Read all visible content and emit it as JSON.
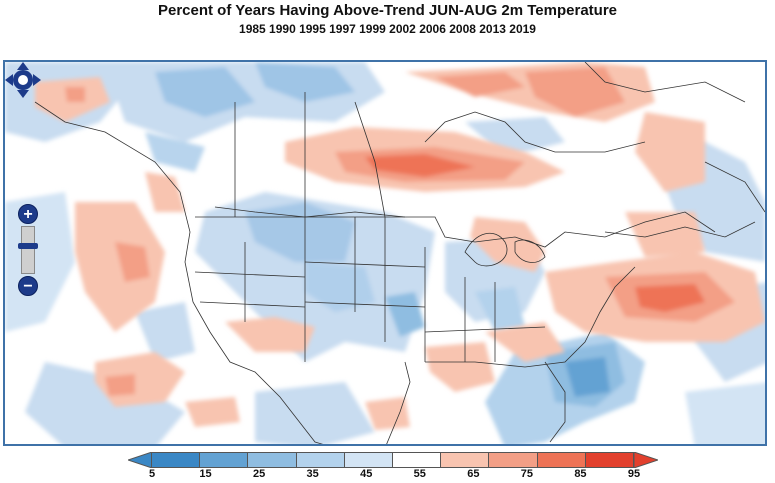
{
  "title": "Percent of Years Having Above-Trend JUN-AUG 2m Temperature",
  "subtitle": "1985 1990 1995 1997 1999 2002 2006 2008 2013 2019",
  "map": {
    "region": "North America",
    "icons": {
      "pan": "pan-arrows-icon",
      "zoom_in": "zoom-in-icon",
      "zoom_out": "zoom-out-icon"
    },
    "zoom": {
      "in_label": "+",
      "out_label": "−"
    }
  },
  "legend": {
    "ticks": [
      "5",
      "15",
      "25",
      "35",
      "45",
      "55",
      "65",
      "75",
      "85",
      "95"
    ],
    "colors": [
      "#3a87c5",
      "#63a2d3",
      "#8fbde1",
      "#b3d2ec",
      "#d3e4f4",
      "#ffffff",
      "#f8c4b0",
      "#f39f86",
      "#ee7356",
      "#e2402d"
    ],
    "extend_low_color": "#3a87c5",
    "extend_high_color": "#e2402d"
  }
}
